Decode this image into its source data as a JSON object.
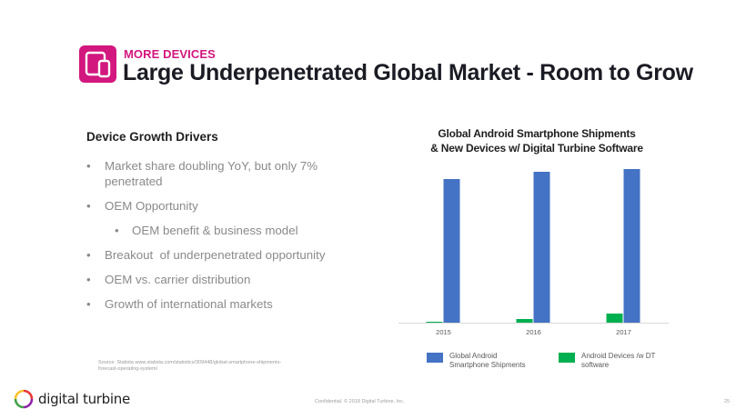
{
  "header": {
    "kicker": "MORE DEVICES",
    "title": "Large Underpenetrated Global Market - Room to Grow",
    "icon": "devices-icon",
    "accent_color": "#d2177e"
  },
  "left": {
    "heading": "Device Growth Drivers",
    "bullets": [
      {
        "text": "Market share doubling YoY, but only 7% penetrated",
        "level": 1
      },
      {
        "text": "OEM Opportunity",
        "level": 1
      },
      {
        "text": "OEM benefit & business model",
        "level": 2
      },
      {
        "text": "Breakout  of underpenetrated opportunity",
        "level": 1
      },
      {
        "text": "OEM vs. carrier distribution",
        "level": 1
      },
      {
        "text": "Growth of international markets",
        "level": 1
      }
    ],
    "bullet_glyph": "•",
    "source": "Source: Statista www.statista.com/statistics/309448/global-smartphone-shipments-forecast-operating-system/"
  },
  "footer": {
    "logo_text": "digital turbine",
    "confidential": "Confidential. © 2018 Digital Turbine, Inc.",
    "page_number": "25"
  },
  "chart_data": {
    "type": "bar",
    "title": "Global Android Smartphone Shipments & New Devices w/ Digital Turbine Software",
    "title_lines": [
      "Global Android Smartphone Shipments",
      "& New Devices w/ Digital Turbine Software"
    ],
    "categories": [
      "2015",
      "2016",
      "2017"
    ],
    "series": [
      {
        "name": "Android Devices /w DT software",
        "color": "#00b050",
        "values": [
          1,
          4,
          10
        ]
      },
      {
        "name": "Global Android  Smartphone Shipments",
        "color": "#4472c4",
        "values": [
          158,
          166,
          169
        ]
      }
    ],
    "legend": [
      {
        "label": "Global Android  Smartphone Shipments",
        "color": "#4472c4"
      },
      {
        "label": "Android Devices /w DT software",
        "color": "#00b050"
      }
    ],
    "legend_position": "bottom",
    "xlabel": "",
    "ylabel": "",
    "ylim": [
      0,
      175
    ],
    "y_axis_visible": false,
    "grid": false
  }
}
